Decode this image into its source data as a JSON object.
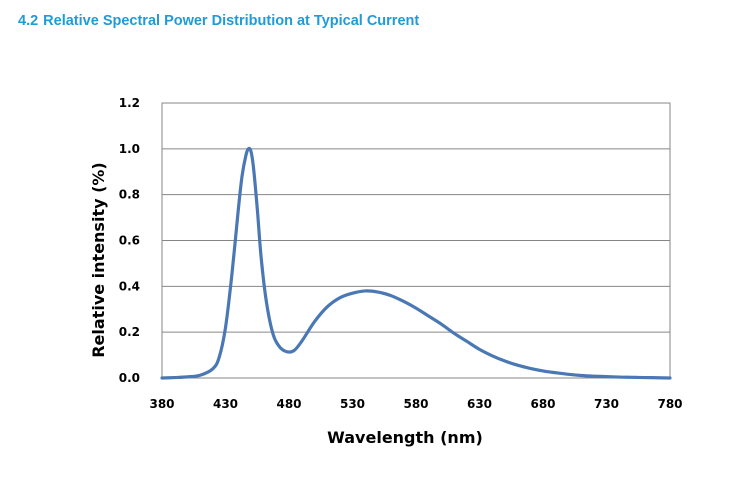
{
  "section": {
    "number": "4.2",
    "title": "Relative Spectral Power Distribution at Typical Current"
  },
  "chart_data": {
    "type": "line",
    "title": "",
    "xlabel": "Wavelength (nm)",
    "ylabel": "Relative intensity (%)",
    "xlim": [
      380,
      780
    ],
    "ylim": [
      0,
      1.2
    ],
    "x_ticks": [
      "380",
      "430",
      "480",
      "530",
      "580",
      "630",
      "680",
      "730",
      "780"
    ],
    "y_ticks": [
      "0.0",
      "0.2",
      "0.4",
      "0.6",
      "0.8",
      "1.0",
      "1.2"
    ],
    "grid": "horizontal",
    "legend": "none",
    "line_color": "#4a78b5",
    "series": [
      {
        "x": [
          380,
          390,
          400,
          410,
          420,
          425,
          430,
          435,
          440,
          443,
          446,
          448,
          450,
          452,
          455,
          458,
          462,
          467,
          472,
          478,
          484,
          490,
          500,
          510,
          520,
          530,
          540,
          550,
          560,
          570,
          580,
          590,
          600,
          610,
          620,
          630,
          640,
          650,
          660,
          670,
          680,
          690,
          700,
          710,
          720,
          730,
          740,
          750,
          760,
          770,
          780
        ],
        "y": [
          0.0,
          0.002,
          0.005,
          0.012,
          0.04,
          0.09,
          0.22,
          0.45,
          0.73,
          0.88,
          0.97,
          1.0,
          0.99,
          0.92,
          0.74,
          0.53,
          0.34,
          0.2,
          0.14,
          0.115,
          0.12,
          0.16,
          0.245,
          0.31,
          0.35,
          0.37,
          0.38,
          0.375,
          0.36,
          0.335,
          0.305,
          0.27,
          0.235,
          0.195,
          0.16,
          0.125,
          0.097,
          0.074,
          0.056,
          0.042,
          0.031,
          0.023,
          0.016,
          0.011,
          0.008,
          0.006,
          0.004,
          0.003,
          0.002,
          0.001,
          0.0
        ]
      }
    ]
  }
}
